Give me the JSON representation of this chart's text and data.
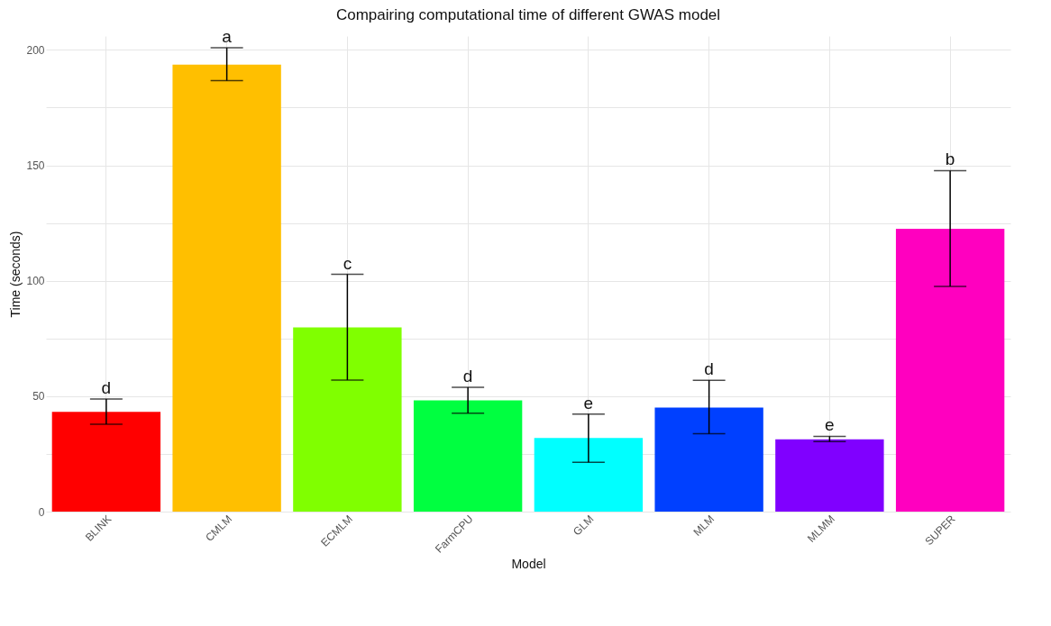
{
  "chart_data": {
    "type": "bar",
    "title": "Compairing computational time of different GWAS model",
    "xlabel": "Model",
    "ylabel": "Time (seconds)",
    "categories": [
      "BLINK",
      "CMLM",
      "ECMLM",
      "FarmCPU",
      "GLM",
      "MLM",
      "MLMM",
      "SUPER"
    ],
    "values": [
      43.2,
      193.6,
      79.8,
      48.2,
      31.9,
      45.1,
      31.3,
      122.5
    ],
    "colors": [
      "#ff0000",
      "#ffbf00",
      "#80ff00",
      "#00ff40",
      "#00ffff",
      "#0040ff",
      "#8000ff",
      "#ff00bf"
    ],
    "errors": [
      [
        37.8,
        48.8
      ],
      [
        186.7,
        200.9
      ],
      [
        57.0,
        102.8
      ],
      [
        42.6,
        53.8
      ],
      [
        21.4,
        42.2
      ],
      [
        33.7,
        56.9
      ],
      [
        30.3,
        32.6
      ],
      [
        97.5,
        147.7
      ]
    ],
    "ylim": [
      0,
      206
    ],
    "yticks": [
      0,
      {
        "value": 25,
        "label": null
      },
      50,
      {
        "value": 75,
        "label": null
      },
      100,
      {
        "value": 125,
        "label": null
      },
      150,
      {
        "value": 175,
        "label": null
      },
      200
    ],
    "grid": true,
    "annotations": [
      {
        "text": "d",
        "x": "BLINK",
        "y": 48.8
      },
      {
        "text": "a",
        "x": "CMLM",
        "y": 200.9
      },
      {
        "text": "c",
        "x": "ECMLM",
        "y": 102.8
      },
      {
        "text": "d",
        "x": "FarmCPU",
        "y": 53.8
      },
      {
        "text": "e",
        "x": "GLM",
        "y": 42.2
      },
      {
        "text": "d",
        "x": "MLM",
        "y": 56.9
      },
      {
        "text": "e",
        "x": "MLMM",
        "y": 32.6
      },
      {
        "text": "b",
        "x": "SUPER",
        "y": 147.7
      }
    ]
  }
}
